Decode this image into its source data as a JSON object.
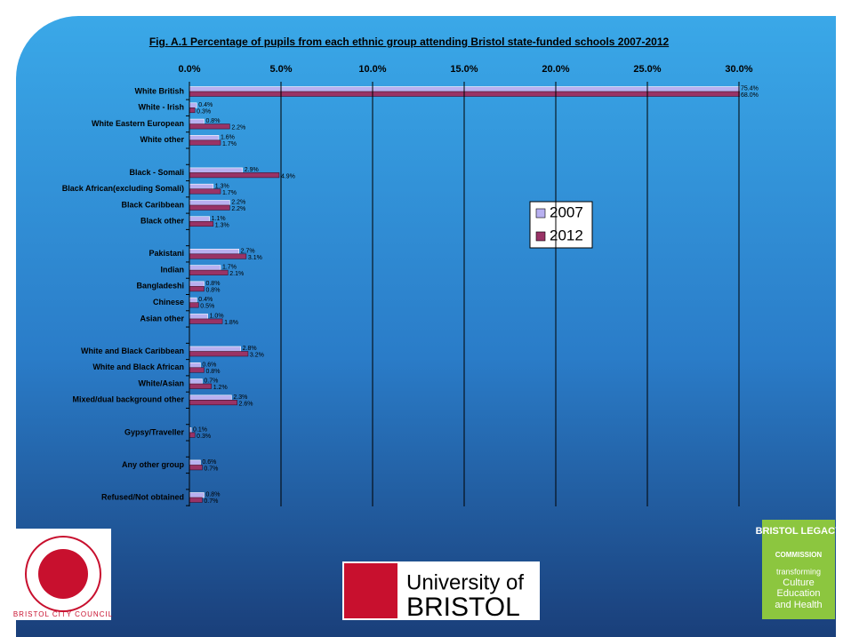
{
  "chart_data": {
    "type": "bar",
    "orientation": "horizontal",
    "title": "Fig. A.1 Percentage of pupils from each ethnic group attending Bristol state-funded schools 2007-2012",
    "categories": [
      "White British",
      "White - Irish",
      "White Eastern European",
      "White other",
      null,
      "Black - Somali",
      "Black African(excluding Somali)",
      "Black Caribbean",
      "Black other",
      null,
      "Pakistani",
      "Indian",
      "Bangladeshi",
      "Chinese",
      "Asian other",
      null,
      "White and Black Caribbean",
      "White and Black African",
      "White/Asian",
      "Mixed/dual background other",
      null,
      "Gypsy/Traveller",
      null,
      "Any other group",
      null,
      "Refused/Not obtained"
    ],
    "series": [
      {
        "name": "2007",
        "color": "#b8b0f0",
        "values": [
          75.4,
          0.4,
          0.8,
          1.6,
          null,
          2.9,
          1.3,
          2.2,
          1.1,
          null,
          2.7,
          1.7,
          0.8,
          0.4,
          1.0,
          null,
          2.8,
          0.6,
          0.7,
          2.3,
          null,
          0.1,
          null,
          0.6,
          null,
          0.8
        ],
        "value_labels": [
          "75.4%",
          "0.4%",
          "0.8%",
          "1.6%",
          null,
          "2.9%",
          "1.3%",
          "2.2%",
          "1.1%",
          null,
          "2.7%",
          "1.7%",
          "0.8%",
          "0.4%",
          "1.0%",
          null,
          "2.8%",
          "0.6%",
          "0.7%",
          "2.3%",
          null,
          "0.1%",
          null,
          "0.6%",
          null,
          "0.8%"
        ]
      },
      {
        "name": "2012",
        "color": "#993366",
        "values": [
          68.0,
          0.3,
          2.2,
          1.7,
          null,
          4.9,
          1.7,
          2.2,
          1.3,
          null,
          3.1,
          2.1,
          0.8,
          0.5,
          1.8,
          null,
          3.2,
          0.8,
          1.2,
          2.6,
          null,
          0.3,
          null,
          0.7,
          null,
          0.7
        ],
        "value_labels": [
          "68.0%",
          "0.3%",
          "2.2%",
          "1.7%",
          null,
          "4.9%",
          "1.7%",
          "2.2%",
          "1.3%",
          null,
          "3.1%",
          "2.1%",
          "0.8%",
          "0.5%",
          "1.8%",
          null,
          "3.2%",
          "0.8%",
          "1.2%",
          "2.6%",
          null,
          "0.3%",
          null,
          "0.7%",
          null,
          "0.7%"
        ]
      }
    ],
    "xlim": [
      0,
      30
    ],
    "xticks": [
      {
        "value": 0,
        "label": "0.0%"
      },
      {
        "value": 5,
        "label": "5.0%"
      },
      {
        "value": 10,
        "label": "10.0%"
      },
      {
        "value": 15,
        "label": "15.0%"
      },
      {
        "value": 20,
        "label": "20.0%"
      },
      {
        "value": 25,
        "label": "25.0%"
      },
      {
        "value": 30,
        "label": "30.0%"
      }
    ],
    "grid": true,
    "legend": "right"
  },
  "logos": {
    "council": "BRISTOL CITY COUNCIL",
    "university_line1": "University of",
    "university_line2": "BRISTOL",
    "legacy_title": "BRISTOL LEGACY",
    "legacy_sub": "COMMISSION",
    "legacy_line1": "transforming",
    "legacy_line2": "Culture",
    "legacy_line3": "Education",
    "legacy_line4": "and Health"
  }
}
